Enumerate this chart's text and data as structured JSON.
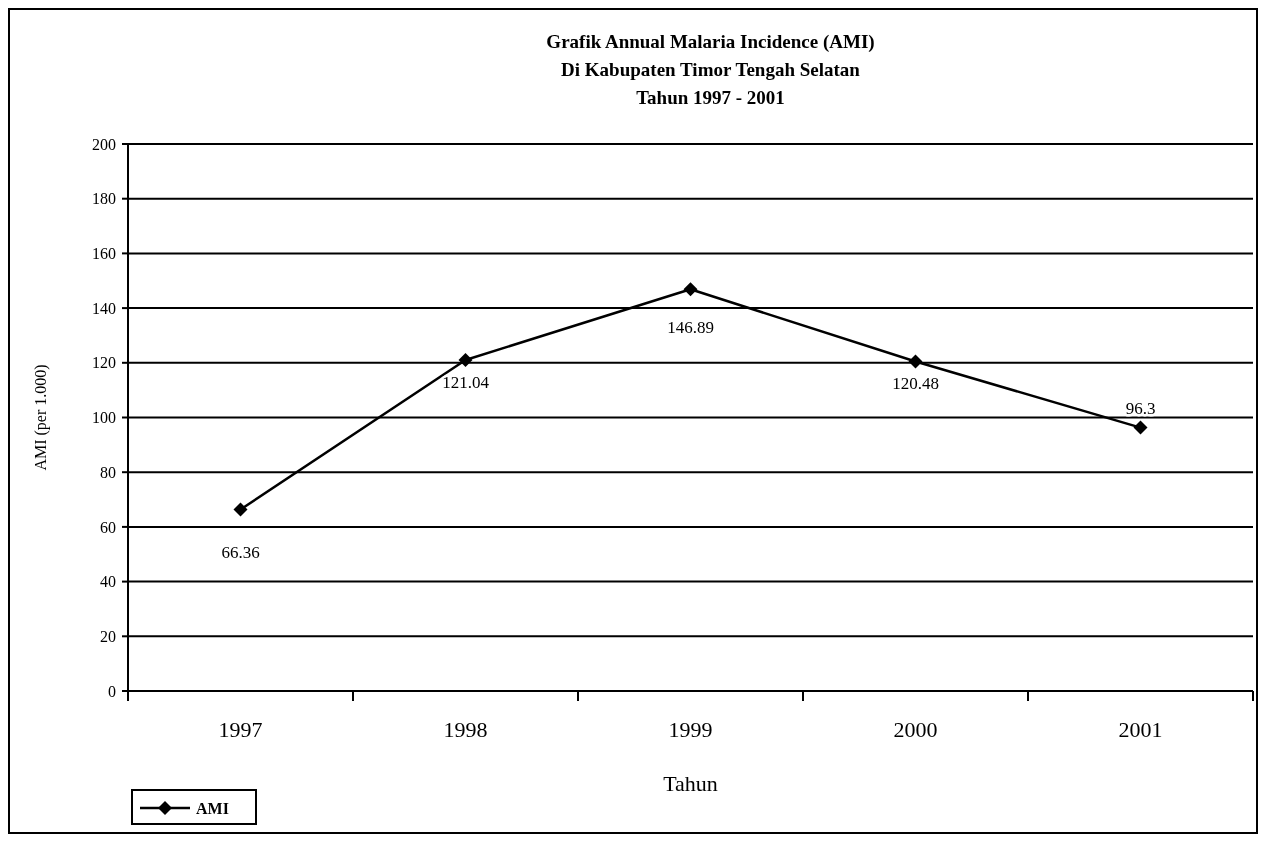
{
  "chart_data": {
    "type": "line",
    "title": "Grafik Annual Malaria Incidence (AMI)\nDi Kabupaten Timor Tengah Selatan\nTahun 1997 - 2001",
    "xlabel": "Tahun",
    "ylabel": "AMI (per 1.000)",
    "categories": [
      "1997",
      "1998",
      "1999",
      "2000",
      "2001"
    ],
    "series": [
      {
        "name": "AMI",
        "color": "#000000",
        "values": [
          66.36,
          121.04,
          146.89,
          120.48,
          96.3
        ]
      }
    ],
    "ylim": [
      0,
      200
    ],
    "yticks": [
      0,
      20,
      40,
      60,
      80,
      100,
      120,
      140,
      160,
      180,
      200
    ],
    "grid": "y",
    "legend": "bottom left",
    "marker": "diamond",
    "line_style": "solid",
    "data_labels": true
  }
}
